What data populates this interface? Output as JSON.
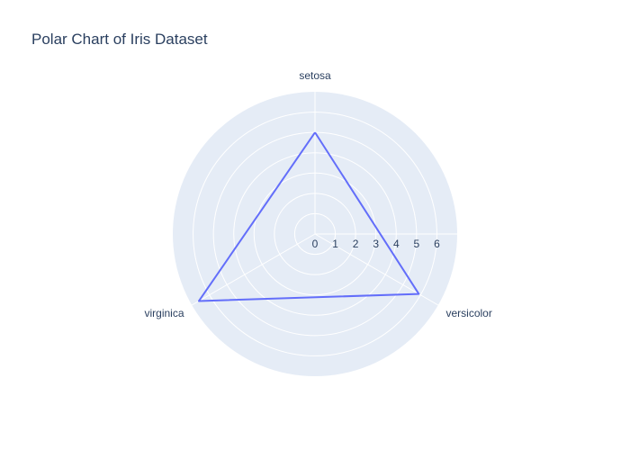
{
  "chart_data": {
    "type": "polar",
    "title": "Polar Chart of Iris Dataset",
    "categories": [
      "setosa",
      "versicolor",
      "virginica"
    ],
    "series": [
      {
        "values": [
          5.0,
          5.9,
          6.6
        ],
        "color": "#636efa",
        "closed": true
      }
    ],
    "radial_range": [
      0,
      7
    ],
    "radial_ticks": [
      0,
      1,
      2,
      3,
      4,
      5,
      6
    ],
    "grid": true,
    "background_color": "#e5ecf6",
    "grid_color": "#ffffff",
    "text_color": "#2a3f5f"
  }
}
